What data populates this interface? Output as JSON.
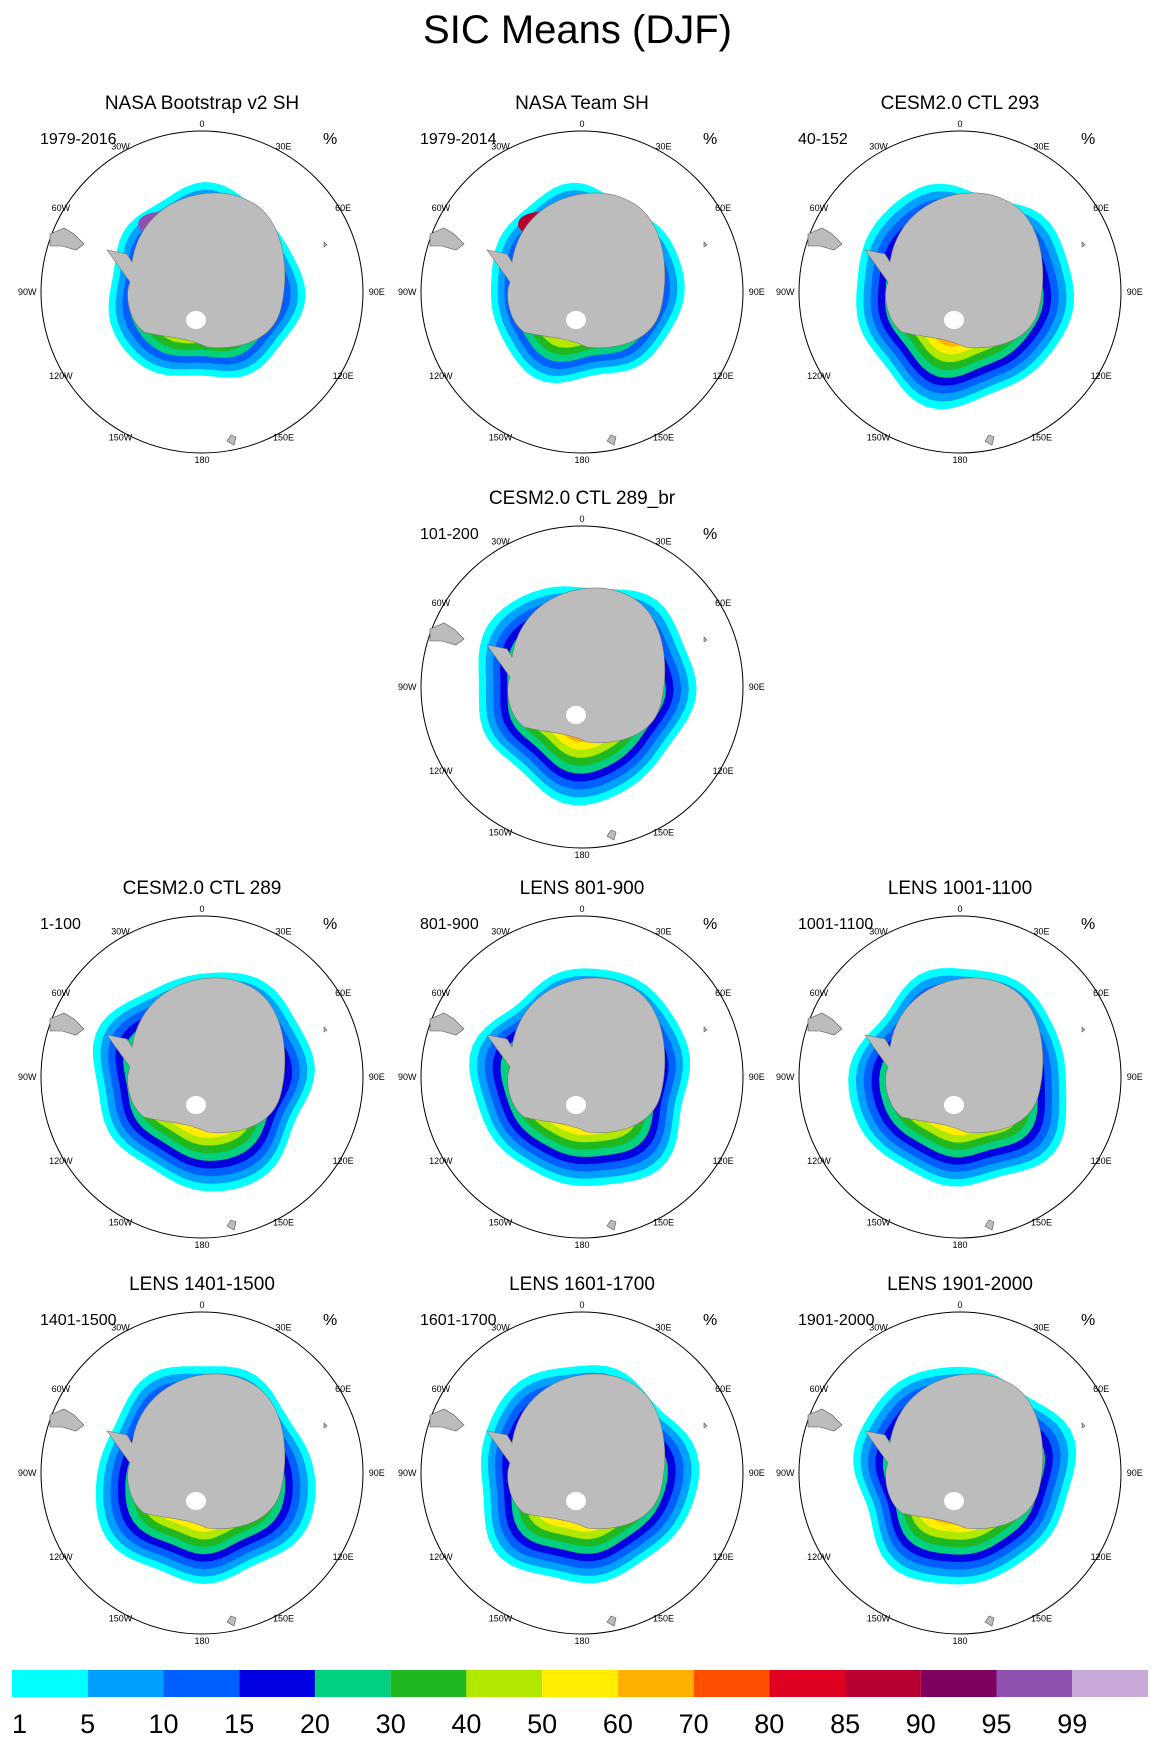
{
  "title": "SIC Means (DJF)",
  "chart_data": {
    "type": "polar-stereographic-contour-maps",
    "variable": "Sea ice concentration",
    "season": "DJF",
    "units": "%",
    "longitude_labels": [
      "0",
      "30E",
      "60E",
      "90E",
      "120E",
      "150E",
      "180",
      "150W",
      "120W",
      "90W",
      "60W",
      "30W"
    ],
    "colorbar": {
      "levels": [
        "1",
        "5",
        "10",
        "15",
        "20",
        "30",
        "40",
        "50",
        "60",
        "70",
        "80",
        "85",
        "90",
        "95",
        "99"
      ],
      "colors": [
        "#00ffff",
        "#00a0ff",
        "#0060ff",
        "#0000e0",
        "#00d080",
        "#20b820",
        "#b0e800",
        "#ffee00",
        "#ffb000",
        "#ff5000",
        "#e00020",
        "#b80030",
        "#800060",
        "#9050b0",
        "#c8a8d8"
      ]
    },
    "panels": [
      {
        "name": "NASA Bootstrap v2 SH",
        "years": "1979-2016",
        "unit": "%"
      },
      {
        "name": "NASA Team SH",
        "years": "1979-2014",
        "unit": "%"
      },
      {
        "name": "CESM2.0 CTL 293",
        "years": "40-152",
        "unit": "%"
      },
      {
        "name": "CESM2.0 CTL 289_br",
        "years": "101-200",
        "unit": "%"
      },
      {
        "name": "CESM2.0 CTL 289",
        "years": "1-100",
        "unit": "%"
      },
      {
        "name": "LENS 801-900",
        "years": "801-900",
        "unit": "%"
      },
      {
        "name": "LENS 1001-1100",
        "years": "1001-1100",
        "unit": "%"
      },
      {
        "name": "LENS 1401-1500",
        "years": "1401-1500",
        "unit": "%"
      },
      {
        "name": "LENS 1601-1700",
        "years": "1601-1700",
        "unit": "%"
      },
      {
        "name": "LENS 1901-2000",
        "years": "1901-2000",
        "unit": "%"
      }
    ]
  }
}
